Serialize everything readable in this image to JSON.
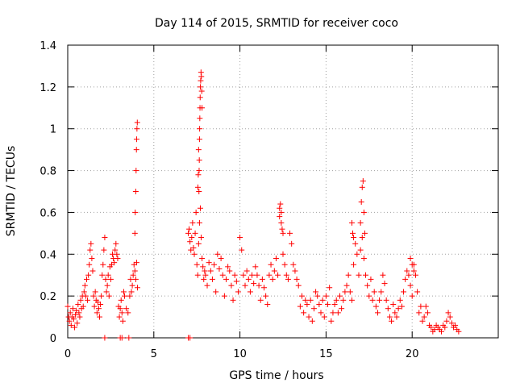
{
  "chart_data": {
    "type": "scatter",
    "title": "Day 114 of 2015, SRMTID for receiver coco",
    "xlabel": "GPS time / hours",
    "ylabel": "SRMTID / TECUs",
    "xlim": [
      0,
      25
    ],
    "ylim": [
      0,
      1.4
    ],
    "xticks": [
      "0",
      "5",
      "10",
      "15",
      "20"
    ],
    "xtick_values": [
      0,
      5,
      10,
      15,
      20
    ],
    "yticks": [
      "0",
      "0.2",
      "0.4",
      "0.6",
      "0.8",
      "1",
      "1.2",
      "1.4"
    ],
    "ytick_values": [
      0,
      0.2,
      0.4,
      0.6,
      0.8,
      1.0,
      1.2,
      1.4
    ],
    "grid": true,
    "marker": "plus",
    "color": "#ff0000",
    "series": [
      {
        "name": "SRMTID",
        "x": [
          0.0,
          0.05,
          0.1,
          0.15,
          0.2,
          0.25,
          0.3,
          0.35,
          0.4,
          0.45,
          0.5,
          0.55,
          0.6,
          0.65,
          0.7,
          0.75,
          0.8,
          0.85,
          0.9,
          0.95,
          1.0,
          1.05,
          1.1,
          1.15,
          1.2,
          1.25,
          1.3,
          1.35,
          1.4,
          1.45,
          1.5,
          1.55,
          1.6,
          1.65,
          1.7,
          1.75,
          1.8,
          1.85,
          1.9,
          1.95,
          2.0,
          2.05,
          2.1,
          2.15,
          2.2,
          2.25,
          2.3,
          2.35,
          2.4,
          2.45,
          2.5,
          2.55,
          2.6,
          2.65,
          2.7,
          2.75,
          2.8,
          2.85,
          2.9,
          2.95,
          3.0,
          3.05,
          3.1,
          3.15,
          3.2,
          3.25,
          3.3,
          3.4,
          3.5,
          3.6,
          3.65,
          3.7,
          3.75,
          3.8,
          3.85,
          3.9,
          3.95,
          4.0,
          4.05,
          2.15,
          3.05,
          3.15,
          3.55,
          7.0,
          7.1,
          7.0,
          7.05,
          7.1,
          7.15,
          7.2,
          7.25,
          7.3,
          7.35,
          7.4,
          7.45,
          7.5,
          7.55,
          7.6,
          7.65,
          7.7,
          7.75,
          7.8,
          7.85,
          7.9,
          7.95,
          8.0,
          8.1,
          8.2,
          8.3,
          8.4,
          8.5,
          8.6,
          8.7,
          8.8,
          8.9,
          9.0,
          9.1,
          9.2,
          9.3,
          9.4,
          9.5,
          9.6,
          9.7,
          9.8,
          9.9,
          10.0,
          10.1,
          10.2,
          10.3,
          10.4,
          10.5,
          10.6,
          10.7,
          10.8,
          10.9,
          11.0,
          11.1,
          11.2,
          11.3,
          11.4,
          11.5,
          11.6,
          11.7,
          11.8,
          11.9,
          12.0,
          12.1,
          12.2,
          12.3,
          12.4,
          12.5,
          12.6,
          12.7,
          12.8,
          12.9,
          13.0,
          13.1,
          13.2,
          13.3,
          13.4,
          13.5,
          13.6,
          13.7,
          13.8,
          13.9,
          14.0,
          14.1,
          14.2,
          14.3,
          14.4,
          14.5,
          14.6,
          14.7,
          14.8,
          14.9,
          15.0,
          15.1,
          15.2,
          15.3,
          15.4,
          15.5,
          15.6,
          15.7,
          15.8,
          15.9,
          16.0,
          16.1,
          16.2,
          16.3,
          16.4,
          16.5,
          16.6,
          16.7,
          16.8,
          16.9,
          17.0,
          17.1,
          17.2,
          17.3,
          17.4,
          17.5,
          17.6,
          17.7,
          17.8,
          17.9,
          18.0,
          18.1,
          18.2,
          18.3,
          18.4,
          18.5,
          18.6,
          18.7,
          18.8,
          18.9,
          19.0,
          19.1,
          19.2,
          19.3,
          19.4,
          19.5,
          19.6,
          19.7,
          19.8,
          19.9,
          20.0,
          20.1,
          20.2,
          20.3,
          20.4,
          20.5,
          20.6,
          20.7,
          20.8,
          20.9,
          21.0,
          21.1,
          21.2,
          21.3,
          21.4,
          21.5,
          21.6,
          21.7,
          21.8,
          21.9,
          22.0,
          22.1,
          22.2,
          22.3,
          22.4,
          22.5,
          22.6,
          22.7,
          3.9,
          3.92,
          3.95,
          3.97,
          3.99,
          4.0,
          4.02,
          4.04,
          7.62,
          7.63,
          7.64,
          7.65,
          7.66,
          7.67,
          7.68,
          7.69,
          7.7,
          7.72,
          7.74,
          7.76,
          7.78,
          7.8,
          7.6,
          7.58,
          7.56,
          12.3,
          12.35,
          12.4,
          12.45,
          12.5,
          17.0,
          17.05,
          17.1,
          17.15,
          17.2,
          17.25,
          16.5,
          16.55,
          16.6,
          19.9,
          20.0,
          20.1
        ],
        "y": [
          0.15,
          0.1,
          0.08,
          0.12,
          0.06,
          0.1,
          0.14,
          0.09,
          0.05,
          0.11,
          0.13,
          0.07,
          0.16,
          0.12,
          0.1,
          0.18,
          0.14,
          0.2,
          0.15,
          0.22,
          0.25,
          0.2,
          0.28,
          0.18,
          0.3,
          0.35,
          0.42,
          0.45,
          0.38,
          0.32,
          0.2,
          0.15,
          0.22,
          0.18,
          0.12,
          0.17,
          0.14,
          0.1,
          0.16,
          0.2,
          0.3,
          0.35,
          0.42,
          0.48,
          0.28,
          0.22,
          0.25,
          0.3,
          0.2,
          0.34,
          0.28,
          0.35,
          0.4,
          0.38,
          0.36,
          0.42,
          0.45,
          0.4,
          0.38,
          0.15,
          0.1,
          0.14,
          0.18,
          0.12,
          0.08,
          0.22,
          0.2,
          0.14,
          0.12,
          0.2,
          0.28,
          0.22,
          0.25,
          0.3,
          0.35,
          0.32,
          0.28,
          0.36,
          0.24,
          0.0,
          0.0,
          0.0,
          0.0,
          0.0,
          0.0,
          0.5,
          0.52,
          0.46,
          0.42,
          0.48,
          0.55,
          0.43,
          0.4,
          0.5,
          0.6,
          0.35,
          0.3,
          0.45,
          0.55,
          0.62,
          0.48,
          0.38,
          0.34,
          0.28,
          0.32,
          0.3,
          0.25,
          0.36,
          0.32,
          0.28,
          0.35,
          0.22,
          0.4,
          0.33,
          0.38,
          0.3,
          0.2,
          0.28,
          0.34,
          0.32,
          0.25,
          0.18,
          0.3,
          0.27,
          0.22,
          0.48,
          0.42,
          0.3,
          0.25,
          0.32,
          0.28,
          0.22,
          0.3,
          0.26,
          0.34,
          0.3,
          0.25,
          0.18,
          0.28,
          0.24,
          0.2,
          0.16,
          0.3,
          0.35,
          0.28,
          0.32,
          0.38,
          0.3,
          0.62,
          0.55,
          0.4,
          0.35,
          0.3,
          0.28,
          0.5,
          0.45,
          0.35,
          0.32,
          0.28,
          0.25,
          0.15,
          0.2,
          0.12,
          0.18,
          0.16,
          0.1,
          0.18,
          0.08,
          0.14,
          0.22,
          0.2,
          0.16,
          0.12,
          0.18,
          0.1,
          0.2,
          0.16,
          0.24,
          0.08,
          0.12,
          0.16,
          0.18,
          0.12,
          0.2,
          0.14,
          0.18,
          0.22,
          0.25,
          0.3,
          0.22,
          0.18,
          0.35,
          0.45,
          0.4,
          0.3,
          0.42,
          0.48,
          0.38,
          0.3,
          0.25,
          0.2,
          0.28,
          0.18,
          0.22,
          0.15,
          0.12,
          0.18,
          0.22,
          0.3,
          0.26,
          0.18,
          0.14,
          0.1,
          0.08,
          0.16,
          0.12,
          0.1,
          0.14,
          0.18,
          0.15,
          0.22,
          0.28,
          0.32,
          0.3,
          0.25,
          0.2,
          0.35,
          0.3,
          0.22,
          0.12,
          0.15,
          0.08,
          0.1,
          0.15,
          0.12,
          0.06,
          0.05,
          0.03,
          0.04,
          0.06,
          0.05,
          0.04,
          0.03,
          0.06,
          0.05,
          0.08,
          0.12,
          0.1,
          0.07,
          0.05,
          0.06,
          0.04,
          0.03,
          0.5,
          0.6,
          0.7,
          0.8,
          0.9,
          0.95,
          1.0,
          1.03,
          0.7,
          0.8,
          0.85,
          0.95,
          1.0,
          1.05,
          1.1,
          1.15,
          1.2,
          1.23,
          1.27,
          1.25,
          1.18,
          1.1,
          0.9,
          0.78,
          0.72,
          0.58,
          0.64,
          0.6,
          0.52,
          0.5,
          0.55,
          0.65,
          0.72,
          0.75,
          0.6,
          0.5,
          0.55,
          0.5,
          0.48,
          0.38,
          0.35,
          0.32
        ]
      }
    ]
  }
}
